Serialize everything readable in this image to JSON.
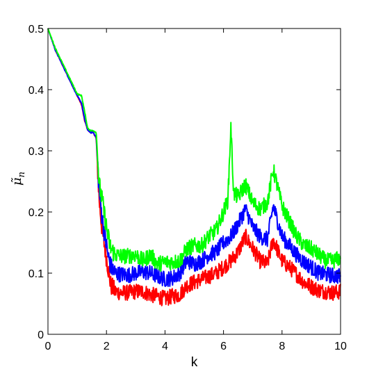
{
  "chart_data": {
    "type": "line",
    "title": "",
    "xlabel": "k",
    "ylabel_base": "μ̃",
    "ylabel_sub": "n",
    "xlim": [
      0,
      10
    ],
    "ylim": [
      0,
      0.5
    ],
    "x_ticks": [
      "0",
      "2",
      "4",
      "6",
      "8",
      "10"
    ],
    "y_ticks": [
      "0",
      "0.1",
      "0.2",
      "0.3",
      "0.4",
      "0.5"
    ],
    "grid": false,
    "legend": "none",
    "series": [
      {
        "color": "#ff0000",
        "x": [
          0,
          0.25,
          0.5,
          0.75,
          1.0,
          1.15,
          1.25,
          1.35,
          1.45,
          1.55,
          1.65,
          1.75,
          1.85,
          1.95,
          2.05,
          2.15,
          2.3,
          2.5,
          2.75,
          3.0,
          3.25,
          3.5,
          3.75,
          4.0,
          4.25,
          4.5,
          4.75,
          5.0,
          5.25,
          5.5,
          5.75,
          6.0,
          6.25,
          6.5,
          6.75,
          7.0,
          7.25,
          7.5,
          7.7,
          8.0,
          8.25,
          8.5,
          8.75,
          9.0,
          9.25,
          9.5,
          9.75,
          10.0
        ],
        "y": [
          0.5,
          0.465,
          0.44,
          0.415,
          0.39,
          0.375,
          0.35,
          0.335,
          0.33,
          0.33,
          0.32,
          0.22,
          0.17,
          0.14,
          0.11,
          0.08,
          0.07,
          0.068,
          0.068,
          0.07,
          0.07,
          0.065,
          0.062,
          0.058,
          0.062,
          0.065,
          0.08,
          0.085,
          0.09,
          0.095,
          0.1,
          0.11,
          0.12,
          0.135,
          0.16,
          0.14,
          0.12,
          0.115,
          0.155,
          0.12,
          0.11,
          0.098,
          0.085,
          0.078,
          0.072,
          0.07,
          0.068,
          0.07
        ]
      },
      {
        "color": "#0000ff",
        "x": [
          0,
          0.25,
          0.5,
          0.75,
          1.0,
          1.15,
          1.25,
          1.35,
          1.45,
          1.55,
          1.65,
          1.75,
          1.85,
          1.95,
          2.05,
          2.15,
          2.3,
          2.5,
          2.75,
          3.0,
          3.25,
          3.5,
          3.75,
          4.0,
          4.25,
          4.5,
          4.75,
          5.0,
          5.25,
          5.5,
          5.75,
          6.0,
          6.25,
          6.5,
          6.75,
          7.0,
          7.25,
          7.5,
          7.7,
          8.0,
          8.25,
          8.5,
          8.75,
          9.0,
          9.25,
          9.5,
          9.75,
          10.0
        ],
        "y": [
          0.5,
          0.465,
          0.44,
          0.415,
          0.39,
          0.378,
          0.352,
          0.335,
          0.33,
          0.33,
          0.322,
          0.235,
          0.19,
          0.16,
          0.13,
          0.11,
          0.1,
          0.098,
          0.097,
          0.1,
          0.102,
          0.1,
          0.095,
          0.09,
          0.092,
          0.1,
          0.12,
          0.115,
          0.12,
          0.13,
          0.135,
          0.15,
          0.16,
          0.18,
          0.205,
          0.175,
          0.16,
          0.155,
          0.21,
          0.16,
          0.145,
          0.13,
          0.118,
          0.11,
          0.1,
          0.098,
          0.096,
          0.095
        ]
      },
      {
        "color": "#00ff00",
        "x": [
          0,
          0.25,
          0.5,
          0.75,
          1.0,
          1.15,
          1.25,
          1.35,
          1.45,
          1.55,
          1.65,
          1.75,
          1.85,
          1.95,
          2.05,
          2.15,
          2.3,
          2.5,
          2.75,
          3.0,
          3.25,
          3.5,
          3.75,
          4.0,
          4.25,
          4.5,
          4.75,
          5.0,
          5.25,
          5.5,
          5.75,
          6.0,
          6.15,
          6.25,
          6.35,
          6.5,
          6.75,
          7.0,
          7.25,
          7.5,
          7.7,
          8.0,
          8.25,
          8.5,
          8.75,
          9.0,
          9.25,
          9.5,
          9.75,
          10.0
        ],
        "y": [
          0.5,
          0.468,
          0.443,
          0.418,
          0.393,
          0.39,
          0.365,
          0.338,
          0.333,
          0.333,
          0.33,
          0.245,
          0.22,
          0.19,
          0.16,
          0.14,
          0.13,
          0.128,
          0.128,
          0.13,
          0.12,
          0.13,
          0.115,
          0.118,
          0.118,
          0.12,
          0.14,
          0.145,
          0.145,
          0.16,
          0.17,
          0.2,
          0.22,
          0.34,
          0.23,
          0.225,
          0.245,
          0.215,
          0.205,
          0.215,
          0.27,
          0.21,
          0.185,
          0.16,
          0.145,
          0.14,
          0.13,
          0.12,
          0.12,
          0.125
        ]
      }
    ]
  }
}
